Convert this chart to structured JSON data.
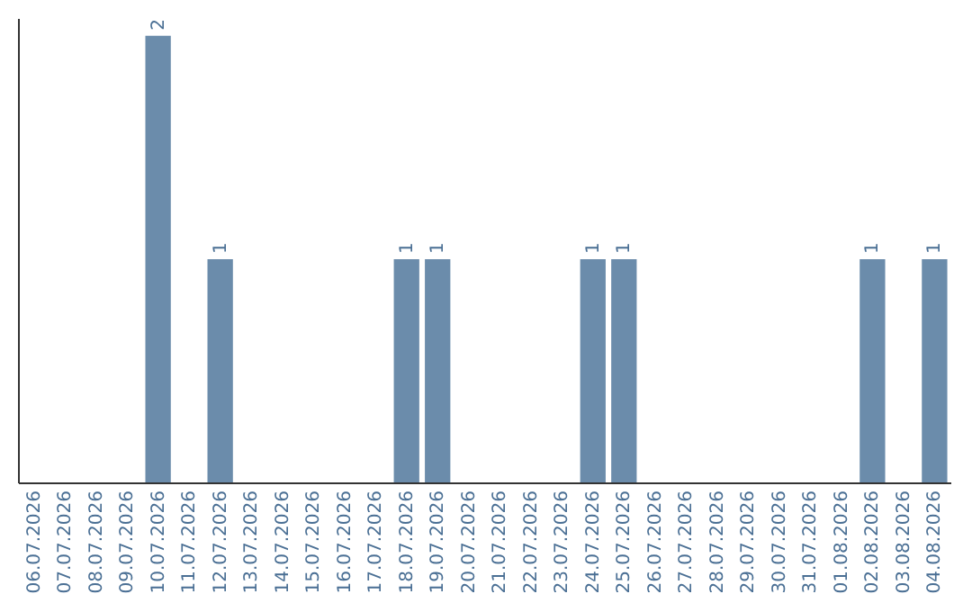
{
  "chart_data": {
    "type": "bar",
    "categories": [
      "06.07.2026",
      "07.07.2026",
      "08.07.2026",
      "09.07.2026",
      "10.07.2026",
      "11.07.2026",
      "12.07.2026",
      "13.07.2026",
      "14.07.2026",
      "15.07.2026",
      "16.07.2026",
      "17.07.2026",
      "18.07.2026",
      "19.07.2026",
      "20.07.2026",
      "21.07.2026",
      "22.07.2026",
      "23.07.2026",
      "24.07.2026",
      "25.07.2026",
      "26.07.2026",
      "27.07.2026",
      "28.07.2026",
      "29.07.2026",
      "30.07.2026",
      "31.07.2026",
      "01.08.2026",
      "02.08.2026",
      "03.08.2026",
      "04.08.2026"
    ],
    "values": [
      0,
      0,
      0,
      0,
      2,
      0,
      1,
      0,
      0,
      0,
      0,
      0,
      1,
      1,
      0,
      0,
      0,
      0,
      1,
      1,
      0,
      0,
      0,
      0,
      0,
      0,
      0,
      1,
      0,
      1
    ],
    "value_labels": [
      null,
      null,
      null,
      null,
      "2",
      null,
      "1",
      null,
      null,
      null,
      null,
      null,
      "1",
      "1",
      null,
      null,
      null,
      null,
      "1",
      "1",
      null,
      null,
      null,
      null,
      null,
      null,
      null,
      "1",
      null,
      "1"
    ],
    "color": "#6b8cab",
    "ylim": [
      0,
      2.08
    ],
    "tick_labels": "x",
    "grid": false
  }
}
